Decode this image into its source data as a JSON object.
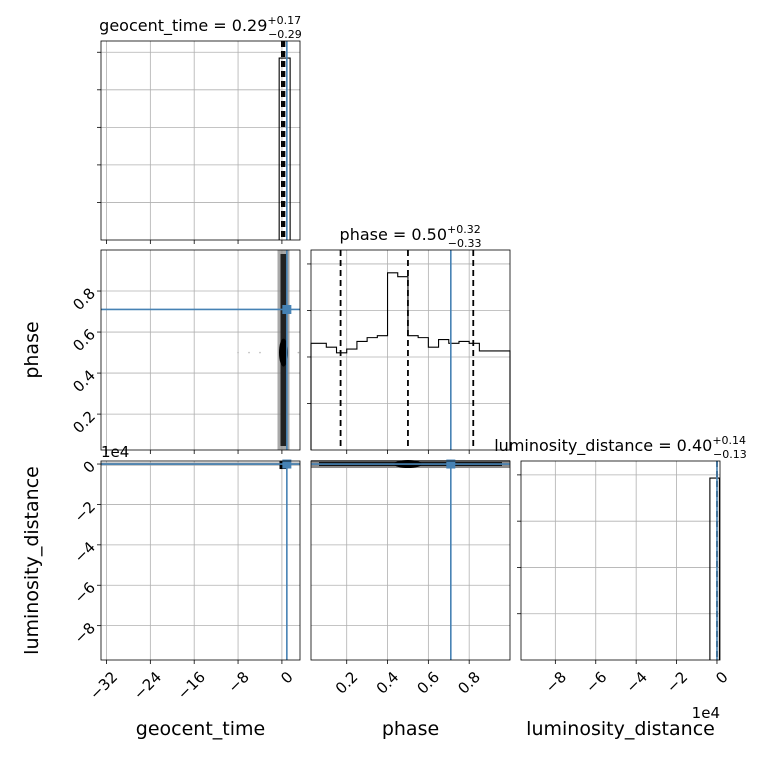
{
  "chart_data": {
    "type": "corner",
    "truth_color": "#4682b4",
    "parameters": [
      "geocent_time",
      "phase",
      "luminosity_distance"
    ],
    "axis_labels": {
      "geocent_time": "geocent_time",
      "phase": "phase",
      "luminosity_distance": "luminosity_distance"
    },
    "titles": [
      {
        "param": "geocent_time",
        "prefix": "geocent_time = ",
        "value": "0.29",
        "plus": "+0.17",
        "minus": "−0.29"
      },
      {
        "param": "phase",
        "prefix": "phase = ",
        "value": "0.50",
        "plus": "+0.32",
        "minus": "−0.33"
      },
      {
        "param": "luminosity_distance",
        "prefix": "luminosity_distance = ",
        "value": "0.40",
        "plus": "+0.14",
        "minus": "−0.13"
      }
    ],
    "ranges": {
      "geocent_time": [
        -33.0,
        3.3
      ],
      "phase": [
        0.025,
        1.0
      ],
      "luminosity_distance": [
        -9.7,
        0.15
      ]
    },
    "offsets": {
      "luminosity_distance": "1e4"
    },
    "ticks": {
      "geocent_time": {
        "values": [
          -32,
          -24,
          -16,
          -8,
          0
        ],
        "labels": [
          "−32",
          "−24",
          "−16",
          "−8",
          "0"
        ]
      },
      "phase": {
        "values": [
          0.2,
          0.4,
          0.6,
          0.8
        ],
        "labels": [
          "0.2",
          "0.4",
          "0.6",
          "0.8"
        ]
      },
      "luminosity_distance": {
        "values": [
          -8,
          -6,
          -4,
          -2,
          0
        ],
        "labels": [
          "−8",
          "−6",
          "−4",
          "−2",
          "0"
        ]
      }
    },
    "truths": {
      "geocent_time": 0.9,
      "phase": 0.71,
      "luminosity_distance": 0.0
    },
    "quantiles": {
      "geocent_time": [
        0.0,
        0.29,
        0.46
      ],
      "phase": [
        0.17,
        0.5,
        0.82
      ]
    },
    "phase_histogram": {
      "bin_edges": [
        0.025,
        0.1,
        0.15,
        0.2,
        0.25,
        0.3,
        0.35,
        0.4,
        0.45,
        0.5,
        0.55,
        0.6,
        0.65,
        0.7,
        0.75,
        0.8,
        0.85,
        0.9,
        1.0
      ],
      "counts": [
        0.56,
        0.54,
        0.51,
        0.53,
        0.57,
        0.59,
        0.6,
        0.93,
        0.91,
        0.6,
        0.59,
        0.54,
        0.58,
        0.56,
        0.57,
        0.56,
        0.52,
        0.52
      ],
      "ylim": [
        0,
        1.05
      ]
    },
    "geocent_time_histogram": {
      "bin_edges": [
        -0.5,
        0.0,
        0.5,
        1.0,
        1.5
      ],
      "counts": [
        0.96,
        0.96,
        0.96,
        0.96
      ],
      "ylim": [
        0,
        1.05
      ]
    },
    "luminosity_distance_histogram": {
      "bin_edges": [
        -0.35,
        -0.12,
        0.0,
        0.12
      ],
      "counts": [
        0.96,
        0.96,
        0.96
      ],
      "ylim": [
        0,
        1.05
      ]
    }
  }
}
